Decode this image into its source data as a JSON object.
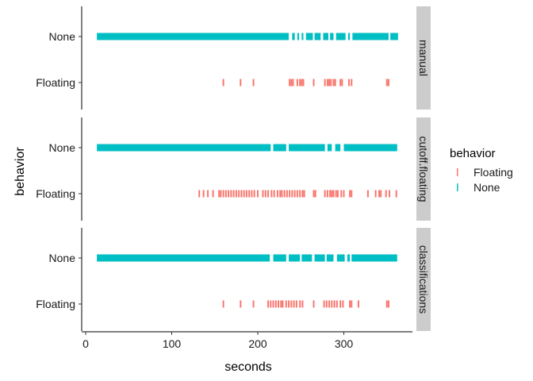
{
  "chart_data": {
    "type": "scatter",
    "mark": "tick",
    "xlabel": "seconds",
    "ylabel": "behavior",
    "x_ticks": [
      0,
      100,
      200,
      300
    ],
    "xlim": [
      -5,
      385
    ],
    "categories": [
      "None",
      "Floating"
    ],
    "grid": false,
    "legend": {
      "title": "behavior",
      "position": "right",
      "entries": [
        {
          "label": "Floating",
          "color": "#F8766D"
        },
        {
          "label": "None",
          "color": "#00BFC4"
        }
      ]
    },
    "strip_color": "#CCCCCC",
    "panels": [
      {
        "strip": "manual",
        "series": [
          {
            "category": "None",
            "color": "#00BFC4",
            "segments": [
              [
                13,
                236
              ],
              [
                240,
                243
              ],
              [
                246,
                248
              ],
              [
                251,
                253
              ],
              [
                256,
                264
              ],
              [
                266,
                273
              ],
              [
                276,
                282
              ],
              [
                284,
                288
              ],
              [
                291,
                302
              ],
              [
                305,
                307
              ],
              [
                310,
                352
              ],
              [
                354,
                363
              ]
            ],
            "values": []
          },
          {
            "category": "Floating",
            "color": "#F8766D",
            "segments": [],
            "values": [
              160,
              180,
              195,
              237,
              239,
              241,
              246,
              249,
              251,
              253,
              265,
              278,
              281,
              283,
              285,
              288,
              290,
              296,
              298,
              306,
              309,
              350,
              352
            ]
          }
        ]
      },
      {
        "strip": "cutoff.floating",
        "series": [
          {
            "category": "None",
            "color": "#00BFC4",
            "segments": [
              [
                13,
                215
              ],
              [
                218,
                233
              ],
              [
                236,
                278
              ],
              [
                281,
                286
              ],
              [
                290,
                296
              ],
              [
                300,
                362
              ]
            ],
            "values": []
          },
          {
            "category": "Floating",
            "color": "#F8766D",
            "segments": [],
            "values": [
              132,
              137,
              142,
              148,
              155,
              157,
              160,
              163,
              166,
              169,
              172,
              175,
              178,
              181,
              184,
              187,
              190,
              193,
              196,
              200,
              206,
              209,
              212,
              216,
              219,
              223,
              226,
              228,
              231,
              234,
              237,
              240,
              243,
              246,
              249,
              252,
              254,
              265,
              267,
              278,
              281,
              284,
              286,
              288,
              291,
              293,
              297,
              300,
              307,
              309,
              328,
              337,
              341,
              343,
              349,
              353,
              361
            ]
          }
        ]
      },
      {
        "strip": "classifications",
        "series": [
          {
            "category": "None",
            "color": "#00BFC4",
            "segments": [
              [
                13,
                214
              ],
              [
                218,
                233
              ],
              [
                236,
                249
              ],
              [
                251,
                263
              ],
              [
                266,
                278
              ],
              [
                280,
                288
              ],
              [
                292,
                301
              ],
              [
                304,
                307
              ],
              [
                309,
                362
              ]
            ],
            "values": []
          },
          {
            "category": "Floating",
            "color": "#F8766D",
            "segments": [],
            "values": [
              160,
              180,
              195,
              212,
              215,
              218,
              221,
              224,
              227,
              229,
              233,
              236,
              239,
              242,
              245,
              249,
              252,
              265,
              277,
              280,
              283,
              286,
              289,
              292,
              296,
              299,
              307,
              309,
              317,
              350,
              352
            ]
          }
        ]
      }
    ]
  }
}
